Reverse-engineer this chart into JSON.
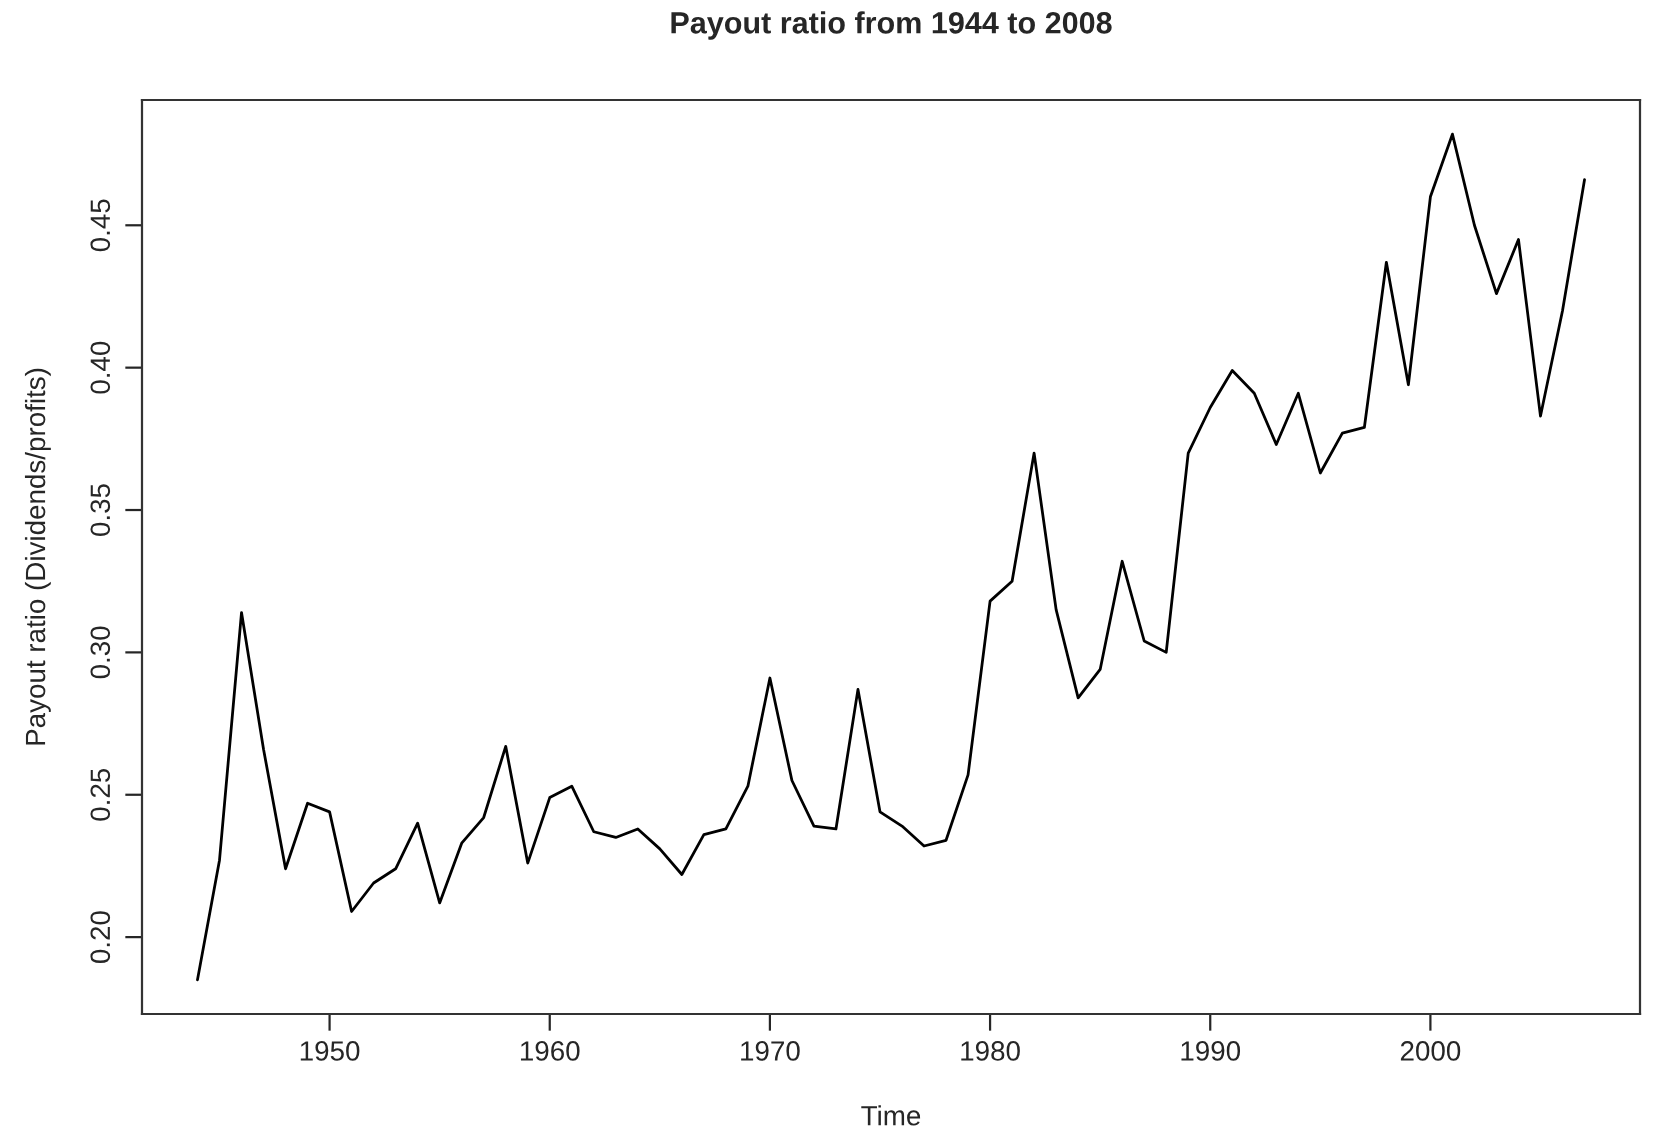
{
  "chart_data": {
    "type": "line",
    "title": "Payout ratio from 1944 to 2008",
    "xlabel": "Time",
    "ylabel": "Payout ratio (Dividends/profits)",
    "x": [
      1944,
      1945,
      1946,
      1947,
      1948,
      1949,
      1950,
      1951,
      1952,
      1953,
      1954,
      1955,
      1956,
      1957,
      1958,
      1959,
      1960,
      1961,
      1962,
      1963,
      1964,
      1965,
      1966,
      1967,
      1968,
      1969,
      1970,
      1971,
      1972,
      1973,
      1974,
      1975,
      1976,
      1977,
      1978,
      1979,
      1980,
      1981,
      1982,
      1983,
      1984,
      1985,
      1986,
      1987,
      1988,
      1989,
      1990,
      1991,
      1992,
      1993,
      1994,
      1995,
      1996,
      1997,
      1998,
      1999,
      2000,
      2001,
      2002,
      2003,
      2004,
      2005,
      2006,
      2007
    ],
    "series": [
      {
        "color": "#000000",
        "values": [
          0.185,
          0.227,
          0.314,
          0.266,
          0.224,
          0.247,
          0.244,
          0.209,
          0.219,
          0.224,
          0.24,
          0.212,
          0.233,
          0.242,
          0.267,
          0.226,
          0.249,
          0.253,
          0.237,
          0.235,
          0.238,
          0.231,
          0.222,
          0.236,
          0.238,
          0.253,
          0.291,
          0.255,
          0.239,
          0.238,
          0.287,
          0.244,
          0.239,
          0.232,
          0.234,
          0.257,
          0.318,
          0.325,
          0.37,
          0.315,
          0.284,
          0.294,
          0.332,
          0.304,
          0.3,
          0.37,
          0.386,
          0.399,
          0.391,
          0.373,
          0.391,
          0.363,
          0.377,
          0.379,
          0.437,
          0.394,
          0.46,
          0.482,
          0.45,
          0.426,
          0.445,
          0.383,
          0.42,
          0.466
        ]
      }
    ],
    "xlim": [
      1941.48,
      2009.52
    ],
    "ylim": [
      0.173,
      0.494
    ],
    "xticks": [
      1950,
      1960,
      1970,
      1980,
      1990,
      2000
    ],
    "yticks": [
      {
        "value": 0.2,
        "label": "0.20"
      },
      {
        "value": 0.25,
        "label": "0.25"
      },
      {
        "value": 0.3,
        "label": "0.30"
      },
      {
        "value": 0.35,
        "label": "0.35"
      },
      {
        "value": 0.4,
        "label": "0.40"
      },
      {
        "value": 0.45,
        "label": "0.45"
      }
    ],
    "grid": false,
    "legend": false,
    "line_style": "solid"
  }
}
